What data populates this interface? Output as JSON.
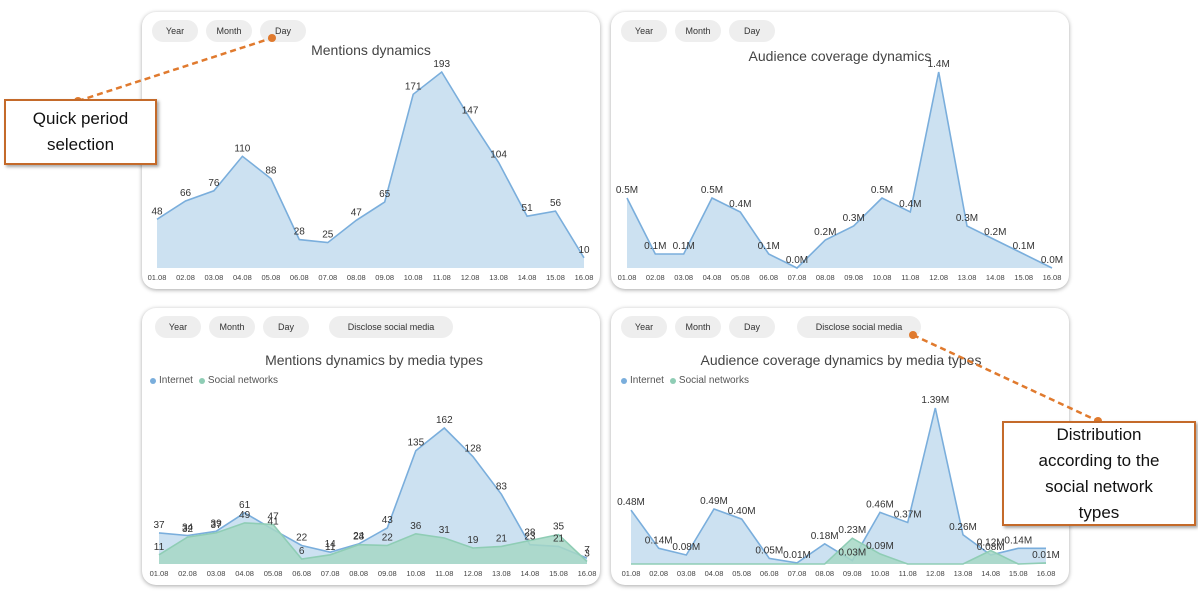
{
  "colors": {
    "internet_fill": "#c9dff0",
    "internet_line": "#7aaedc",
    "social_fill": "#a6d7c6",
    "social_line": "#8fcdb5",
    "callout": "#e07a2e"
  },
  "period_buttons": {
    "year": "Year",
    "month": "Month",
    "day": "Day",
    "disclose": "Disclose social media"
  },
  "legend": {
    "internet": "Internet",
    "social": "Social networks"
  },
  "annotations": {
    "quick": {
      "line1": "Quick period",
      "line2": "selection"
    },
    "distribution": {
      "line1": "Distribution",
      "line2": "according to the",
      "line3": "social network",
      "line4": "types"
    }
  },
  "chart_data": [
    {
      "type": "area",
      "title": "Mentions dynamics",
      "x": [
        "01.08",
        "02.08",
        "03.08",
        "04.08",
        "05.08",
        "06.08",
        "07.08",
        "08.08",
        "09.08",
        "10.08",
        "11.08",
        "12.08",
        "13.08",
        "14.08",
        "15.08",
        "16.08"
      ],
      "series": [
        {
          "values": [
            48,
            66,
            76,
            110,
            88,
            28,
            25,
            47,
            65,
            171,
            193,
            147,
            104,
            51,
            56,
            10
          ],
          "labels": [
            "48",
            "66",
            "76",
            "110",
            "88",
            "28",
            "25",
            "47",
            "65",
            "171",
            "193",
            "147",
            "104",
            "51",
            "56",
            "10"
          ]
        }
      ]
    },
    {
      "type": "area",
      "title": "Audience coverage dynamics",
      "x": [
        "01.08",
        "02.08",
        "03.08",
        "04.08",
        "05.08",
        "06.08",
        "07.08",
        "08.08",
        "09.08",
        "10.08",
        "11.08",
        "12.08",
        "13.08",
        "14.08",
        "15.08",
        "16.08"
      ],
      "series": [
        {
          "values": [
            0.5,
            0.1,
            0.1,
            0.5,
            0.4,
            0.1,
            0.0,
            0.2,
            0.3,
            0.5,
            0.4,
            1.4,
            0.3,
            0.2,
            0.1,
            0.0
          ],
          "labels": [
            "0.5M",
            "0.1M",
            "0.1M",
            "0.5M",
            "0.4M",
            "0.1M",
            "0.0M",
            "0.2M",
            "0.3M",
            "0.5M",
            "0.4M",
            "1.4M",
            "0.3M",
            "0.2M",
            "0.1M",
            "0.0M"
          ]
        }
      ]
    },
    {
      "type": "area",
      "title": "Mentions dynamics by media types",
      "x": [
        "01.08",
        "02.08",
        "03.08",
        "04.08",
        "05.08",
        "06.08",
        "07.08",
        "08.08",
        "09.08",
        "10.08",
        "11.08",
        "12.08",
        "13.08",
        "14.08",
        "15.08",
        "16.08"
      ],
      "series": [
        {
          "name": "Internet",
          "values": [
            37,
            34,
            39,
            61,
            41,
            22,
            14,
            24,
            43,
            135,
            162,
            128,
            83,
            23,
            21,
            7
          ],
          "labels": [
            "37",
            "34",
            "39",
            "61",
            "41",
            "22",
            "14",
            "24",
            "43",
            "135",
            "162",
            "128",
            "83",
            "23",
            "21",
            "7"
          ]
        },
        {
          "name": "Social networks",
          "values": [
            11,
            32,
            37,
            49,
            47,
            6,
            11,
            23,
            22,
            36,
            31,
            19,
            21,
            28,
            35,
            3
          ],
          "labels": [
            "11",
            "32",
            "37",
            "49",
            "47",
            "6",
            "11",
            "23",
            "22",
            "36",
            "31",
            "19",
            "21",
            "28",
            "35",
            "3"
          ]
        }
      ]
    },
    {
      "type": "area",
      "title": "Audience coverage dynamics by media types",
      "x": [
        "01.08",
        "02.08",
        "03.08",
        "04.08",
        "05.08",
        "06.08",
        "07.08",
        "08.08",
        "09.08",
        "10.08",
        "11.08",
        "12.08",
        "13.08",
        "14.08",
        "15.08",
        "16.08"
      ],
      "series": [
        {
          "name": "Internet",
          "values": [
            0.48,
            0.14,
            0.08,
            0.49,
            0.4,
            0.05,
            0.01,
            0.18,
            0.03,
            0.46,
            0.37,
            1.39,
            0.26,
            0.08,
            0.14,
            0.14
          ],
          "labels": [
            "0.48M",
            "0.14M",
            "0.08M",
            "0.49M",
            "0.40M",
            "0.05M",
            "0.01M",
            "0.18M",
            "0.03M",
            "0.46M",
            "0.37M",
            "1.39M",
            "0.26M",
            "0.08M",
            "0.14M",
            ""
          ]
        },
        {
          "name": "Social networks",
          "values": [
            0,
            0,
            0,
            0,
            0,
            0,
            0,
            0,
            0.23,
            0.09,
            0,
            0,
            0,
            0.12,
            0,
            0.01
          ],
          "labels": [
            "",
            "",
            "",
            "",
            "",
            "",
            "",
            "",
            "0.23M",
            "0.09M",
            "",
            "",
            "",
            "0.12M",
            "",
            "0.01M"
          ]
        }
      ]
    }
  ]
}
